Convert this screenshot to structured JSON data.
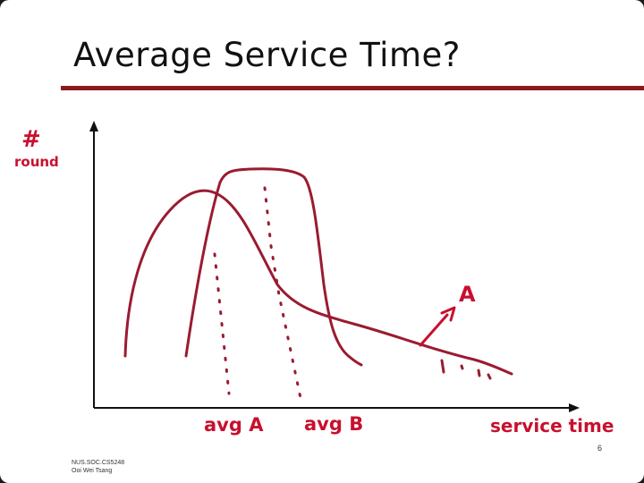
{
  "slide": {
    "title": "Average Service Time?",
    "page_number": "6",
    "footer_course": "NUS.SOC.CS5248",
    "footer_author": "Ooi Wei Tsang"
  },
  "annotations": {
    "y_axis_label_line1": "#",
    "y_axis_label_line2": "round",
    "x_axis_label": "service time",
    "curve_label": "A",
    "avg_a_label": "avg A",
    "avg_b_label": "avg B"
  },
  "colors": {
    "ink": "#9a1b30",
    "axis": "#111111",
    "title_rule": "#8b1a1a",
    "handwriting": "#c8102e"
  }
}
